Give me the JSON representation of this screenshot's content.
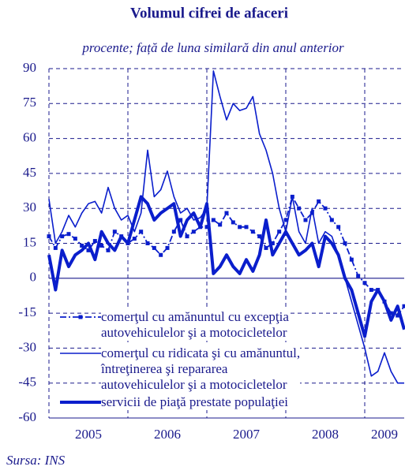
{
  "chart_data": {
    "type": "line",
    "title": "Volumul cifrei de afaceri",
    "subtitle": "procente; față de luna similară din anul anterior",
    "source": "Sursa: INS",
    "categories": [
      null,
      null,
      null,
      null,
      null,
      null,
      "2005",
      null,
      null,
      null,
      null,
      null,
      null,
      null,
      null,
      null,
      null,
      null,
      "2006",
      null,
      null,
      null,
      null,
      null,
      null,
      null,
      null,
      null,
      null,
      null,
      "2007",
      null,
      null,
      null,
      null,
      null,
      null,
      null,
      null,
      null,
      null,
      null,
      "2008",
      null,
      null,
      null,
      null,
      null,
      null,
      null,
      null,
      "2009",
      null,
      null,
      null
    ],
    "series": [
      {
        "name": "comerţul cu amănuntul cu excepţia\nautovehiculelor şi a motocicletelor",
        "color": "#0a1ecc",
        "style": "dashdot-square",
        "values": [
          18,
          13,
          18,
          19,
          17,
          14,
          12,
          16,
          14,
          12,
          20,
          18,
          15,
          17,
          20,
          15,
          13,
          10,
          13,
          20,
          25,
          18,
          20,
          22,
          22,
          25,
          23,
          28,
          24,
          22,
          22,
          20,
          18,
          13,
          15,
          20,
          25,
          35,
          30,
          25,
          28,
          33,
          30,
          25,
          22,
          15,
          8,
          1,
          -2,
          -5,
          -5,
          -10,
          -15,
          -16,
          -12
        ]
      },
      {
        "name": "comerţul cu ridicata şi cu amănuntul,\nîntreţinerea şi repararea\nautovehiculelor şi a motocicletelor",
        "color": "#0a1ecc",
        "style": "thin",
        "values": [
          34,
          15,
          20,
          27,
          22,
          28,
          32,
          33,
          28,
          39,
          30,
          25,
          27,
          20,
          28,
          55,
          35,
          38,
          46,
          35,
          28,
          30,
          25,
          26,
          30,
          89,
          78,
          68,
          75,
          72,
          73,
          78,
          62,
          55,
          45,
          30,
          20,
          35,
          20,
          15,
          30,
          15,
          20,
          18,
          10,
          0,
          -10,
          -20,
          -30,
          -42,
          -40,
          -32,
          -40,
          -45,
          -45
        ]
      },
      {
        "name": "servicii de piaţă prestate populaţiei",
        "color": "#0a1ecc",
        "style": "thick",
        "values": [
          10,
          -5,
          12,
          5,
          10,
          12,
          15,
          8,
          20,
          15,
          12,
          18,
          15,
          25,
          35,
          32,
          25,
          28,
          30,
          32,
          18,
          25,
          28,
          22,
          32,
          2,
          5,
          10,
          5,
          2,
          8,
          3,
          10,
          25,
          10,
          15,
          20,
          15,
          10,
          12,
          15,
          5,
          18,
          15,
          10,
          0,
          -5,
          -15,
          -25,
          -10,
          -5,
          -10,
          -18,
          -12,
          -22
        ]
      }
    ],
    "ylim": [
      -60,
      90
    ],
    "yticks": [
      -60,
      -45,
      -30,
      -15,
      0,
      15,
      30,
      45,
      60,
      75,
      90
    ],
    "grid": true
  }
}
